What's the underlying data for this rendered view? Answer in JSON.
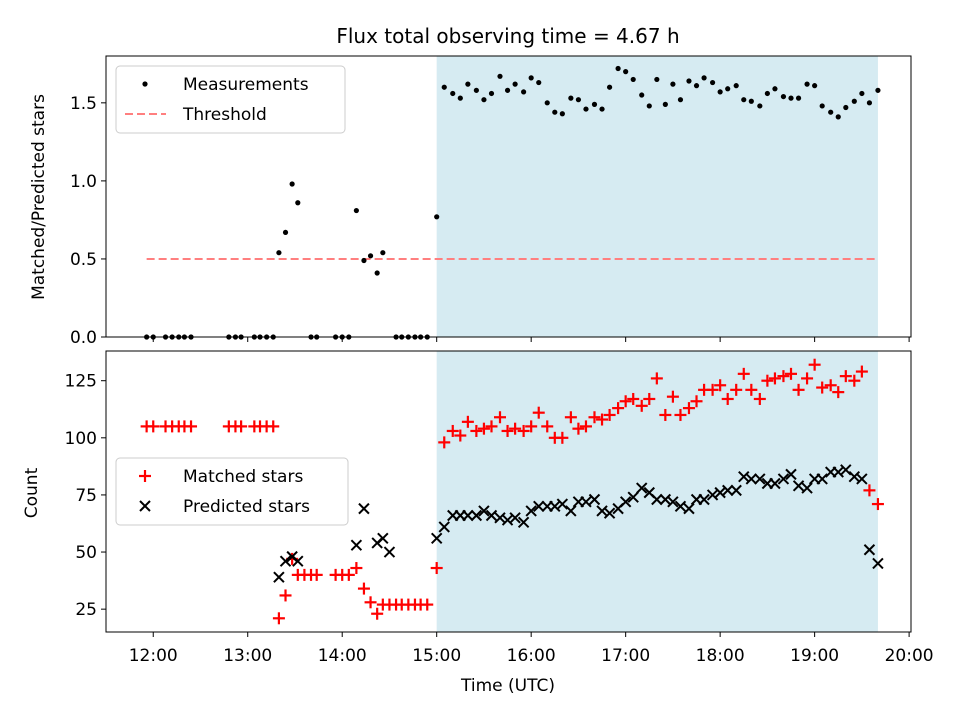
{
  "title": "Flux total observing time = 4.67 h",
  "colors": {
    "shade": "#add8e6",
    "measurement": "#000000",
    "threshold": "#ff7f7f",
    "matched": "#ff0000",
    "predicted": "#000000"
  },
  "chart_data": [
    {
      "type": "scatter",
      "ylabel": "Matched/Predicted stars",
      "ylim": [
        0,
        1.8
      ],
      "xlim": [
        11.5,
        20.02
      ],
      "yticks": [
        0.0,
        0.5,
        1.0,
        1.5
      ],
      "ytick_labels": [
        "0.0",
        "0.5",
        "1.0",
        "1.5"
      ],
      "shaded_span": [
        15.0,
        19.67
      ],
      "legend": {
        "placement": "top-left",
        "entries": [
          "Measurements",
          "Threshold"
        ]
      },
      "threshold": {
        "name": "Threshold",
        "value": 0.5,
        "x_start": 11.93,
        "x_end": 19.67
      },
      "series": [
        {
          "name": "Measurements",
          "x": [
            11.93,
            12.0,
            12.13,
            12.2,
            12.27,
            12.33,
            12.4,
            12.8,
            12.87,
            12.93,
            13.07,
            13.13,
            13.2,
            13.27,
            13.33,
            13.4,
            13.47,
            13.53,
            13.67,
            13.73,
            13.93,
            14.0,
            14.07,
            14.15,
            14.23,
            14.3,
            14.37,
            14.43,
            14.57,
            14.63,
            14.7,
            14.77,
            14.83,
            14.9,
            15.0,
            15.08,
            15.17,
            15.25,
            15.33,
            15.42,
            15.5,
            15.58,
            15.67,
            15.75,
            15.83,
            15.92,
            16.0,
            16.08,
            16.17,
            16.25,
            16.33,
            16.42,
            16.5,
            16.58,
            16.67,
            16.75,
            16.83,
            16.92,
            17.0,
            17.08,
            17.17,
            17.25,
            17.33,
            17.42,
            17.5,
            17.58,
            17.67,
            17.75,
            17.83,
            17.92,
            18.0,
            18.08,
            18.17,
            18.25,
            18.33,
            18.42,
            18.5,
            18.58,
            18.67,
            18.75,
            18.83,
            18.92,
            19.0,
            19.08,
            19.17,
            19.25,
            19.33,
            19.42,
            19.5,
            19.58,
            19.67
          ],
          "y": [
            0,
            0,
            0,
            0,
            0,
            0,
            0,
            0,
            0,
            0,
            0,
            0,
            0,
            0,
            0.54,
            0.67,
            0.98,
            0.86,
            0,
            0,
            0,
            0,
            0,
            0.81,
            0.49,
            0.52,
            0.41,
            0.54,
            0,
            0,
            0,
            0,
            0,
            0,
            0.77,
            1.6,
            1.56,
            1.53,
            1.62,
            1.58,
            1.52,
            1.56,
            1.67,
            1.58,
            1.62,
            1.57,
            1.66,
            1.63,
            1.5,
            1.44,
            1.43,
            1.53,
            1.52,
            1.46,
            1.49,
            1.46,
            1.6,
            1.72,
            1.7,
            1.65,
            1.55,
            1.48,
            1.65,
            1.49,
            1.62,
            1.52,
            1.64,
            1.61,
            1.66,
            1.63,
            1.57,
            1.59,
            1.61,
            1.52,
            1.51,
            1.48,
            1.56,
            1.59,
            1.54,
            1.53,
            1.53,
            1.62,
            1.61,
            1.48,
            1.44,
            1.41,
            1.47,
            1.51,
            1.56,
            1.5,
            1.58
          ]
        }
      ]
    },
    {
      "type": "scatter",
      "xlabel": "Time (UTC)",
      "ylabel": "Count",
      "ylim": [
        15,
        138
      ],
      "xlim": [
        11.5,
        20.02
      ],
      "xticks": [
        12,
        13,
        14,
        15,
        16,
        17,
        18,
        19,
        20
      ],
      "xtick_labels": [
        "12:00",
        "13:00",
        "14:00",
        "15:00",
        "16:00",
        "17:00",
        "18:00",
        "19:00",
        "20:00"
      ],
      "yticks": [
        25,
        50,
        75,
        100,
        125
      ],
      "ytick_labels": [
        "25",
        "50",
        "75",
        "100",
        "125"
      ],
      "shaded_span": [
        15.0,
        19.67
      ],
      "legend": {
        "placement": "center-left",
        "entries": [
          "Matched stars",
          "Predicted stars"
        ]
      },
      "series": [
        {
          "name": "Matched stars",
          "marker": "plus",
          "x": [
            11.93,
            12.0,
            12.13,
            12.2,
            12.27,
            12.33,
            12.4,
            12.8,
            12.87,
            12.93,
            13.07,
            13.13,
            13.2,
            13.27,
            13.33,
            13.4,
            13.47,
            13.53,
            13.6,
            13.67,
            13.73,
            13.93,
            14.0,
            14.07,
            14.15,
            14.23,
            14.3,
            14.37,
            14.43,
            14.5,
            14.57,
            14.63,
            14.7,
            14.77,
            14.83,
            14.9,
            15.0,
            15.08,
            15.17,
            15.25,
            15.33,
            15.42,
            15.5,
            15.58,
            15.67,
            15.75,
            15.83,
            15.92,
            16.0,
            16.08,
            16.17,
            16.25,
            16.33,
            16.42,
            16.5,
            16.58,
            16.67,
            16.75,
            16.83,
            16.92,
            17.0,
            17.08,
            17.17,
            17.25,
            17.33,
            17.42,
            17.5,
            17.58,
            17.67,
            17.75,
            17.83,
            17.92,
            18.0,
            18.08,
            18.17,
            18.25,
            18.33,
            18.42,
            18.5,
            18.58,
            18.67,
            18.75,
            18.83,
            18.92,
            19.0,
            19.08,
            19.17,
            19.25,
            19.33,
            19.42,
            19.5,
            19.58,
            19.67
          ],
          "y": [
            105,
            105,
            105,
            105,
            105,
            105,
            105,
            105,
            105,
            105,
            105,
            105,
            105,
            105,
            21,
            31,
            47,
            40,
            40,
            40,
            40,
            40,
            40,
            40,
            43,
            34,
            28,
            23,
            27,
            27,
            27,
            27,
            27,
            27,
            27,
            27,
            43,
            98,
            103,
            101,
            107,
            103,
            104,
            105,
            109,
            103,
            104,
            103,
            105,
            111,
            105,
            100,
            100,
            109,
            104,
            105,
            109,
            108,
            110,
            113,
            116,
            117,
            114,
            117,
            126,
            110,
            118,
            110,
            113,
            116,
            121,
            121,
            123,
            117,
            121,
            128,
            121,
            117,
            125,
            126,
            127,
            128,
            121,
            126,
            132,
            122,
            123,
            120,
            127,
            125,
            129,
            77,
            71
          ]
        },
        {
          "name": "Predicted stars",
          "marker": "x",
          "x": [
            13.33,
            13.4,
            13.47,
            13.53,
            14.15,
            14.23,
            14.37,
            14.43,
            14.5,
            15.0,
            15.08,
            15.17,
            15.25,
            15.33,
            15.42,
            15.5,
            15.58,
            15.67,
            15.75,
            15.83,
            15.92,
            16.0,
            16.08,
            16.17,
            16.25,
            16.33,
            16.42,
            16.5,
            16.58,
            16.67,
            16.75,
            16.83,
            16.92,
            17.0,
            17.08,
            17.17,
            17.25,
            17.33,
            17.42,
            17.5,
            17.58,
            17.67,
            17.75,
            17.83,
            17.92,
            18.0,
            18.08,
            18.17,
            18.25,
            18.33,
            18.42,
            18.5,
            18.58,
            18.67,
            18.75,
            18.83,
            18.92,
            19.0,
            19.08,
            19.17,
            19.25,
            19.33,
            19.42,
            19.5,
            19.58,
            19.67
          ],
          "y": [
            39,
            46,
            48,
            46,
            53,
            69,
            54,
            56,
            50,
            56,
            61,
            66,
            66,
            66,
            66,
            68,
            66,
            65,
            64,
            65,
            63,
            68,
            70,
            70,
            70,
            71,
            68,
            72,
            72,
            73,
            68,
            67,
            69,
            72,
            74,
            78,
            76,
            73,
            73,
            72,
            70,
            69,
            73,
            73,
            75,
            76,
            77,
            77,
            83,
            82,
            82,
            80,
            80,
            82,
            84,
            79,
            78,
            82,
            82,
            85,
            85,
            86,
            83,
            82,
            51,
            45
          ]
        }
      ]
    }
  ]
}
